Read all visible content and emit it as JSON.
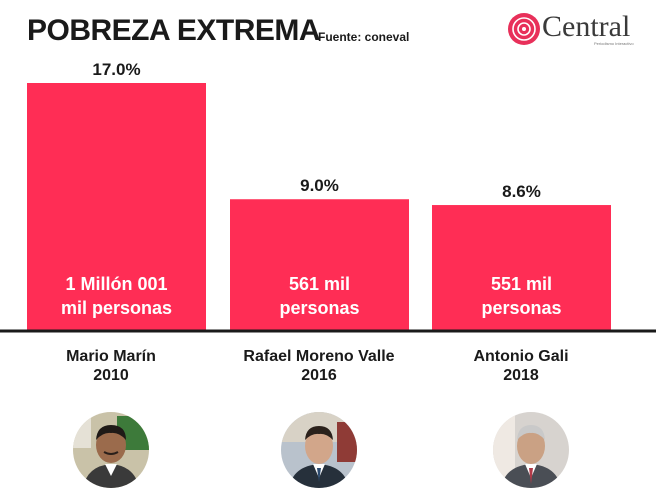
{
  "header": {
    "title": "POBREZA EXTREMA",
    "source": "Fuente: coneval"
  },
  "brand": {
    "name": "Central",
    "tagline": "Periodismo Interactivo",
    "color": "#e8305a"
  },
  "colors": {
    "bar": "#ff2d55",
    "axis": "#1a1a1a"
  },
  "chart_data": {
    "type": "bar",
    "title": "POBREZA EXTREMA",
    "source": "Fuente: coneval",
    "categories": [
      "Mario Marín 2010",
      "Rafael Moreno Valle 2016",
      "Antonio Gali 2018"
    ],
    "values": [
      17.0,
      9.0,
      8.6
    ],
    "value_labels": [
      "17.0%",
      "9.0%",
      "8.6%"
    ],
    "bar_texts": [
      [
        "1 Millón 001",
        "mil personas"
      ],
      [
        "561 mil",
        "personas"
      ],
      [
        "551 mil",
        "personas"
      ]
    ],
    "ylim": [
      0,
      17.0
    ],
    "grid": false,
    "legend": "none"
  },
  "people": [
    {
      "name": "Mario Marín",
      "year": "2010",
      "avatar": "portrait-mario-marin"
    },
    {
      "name": "Rafael Moreno Valle",
      "year": "2016",
      "avatar": "portrait-rafael-moreno-valle"
    },
    {
      "name": "Antonio Gali",
      "year": "2018",
      "avatar": "portrait-antonio-gali"
    }
  ]
}
